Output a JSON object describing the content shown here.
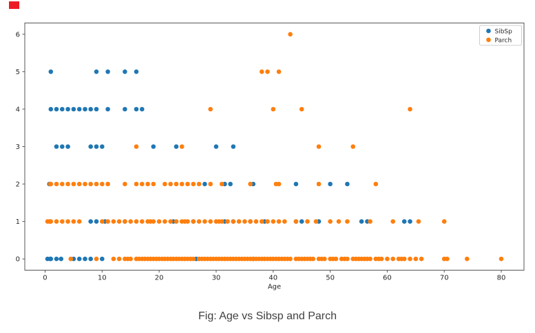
{
  "marker": {
    "color": "#ed1c24"
  },
  "caption": "Fig: Age vs Sibsp and Parch",
  "chart_data": {
    "type": "scatter",
    "title": "",
    "xlabel": "Age",
    "ylabel": "",
    "x_ticks": [
      0,
      10,
      20,
      30,
      40,
      50,
      60,
      70,
      80
    ],
    "y_ticks": [
      0,
      1,
      2,
      3,
      4,
      5,
      6
    ],
    "xlim": [
      -3.56,
      83.98
    ],
    "ylim": [
      -0.3,
      6.3
    ],
    "grid": false,
    "legend_position": "upper right",
    "frame_color": "#555555",
    "series": [
      {
        "name": "SibSp",
        "color": "#1f77b4",
        "points": [
          [
            0.42,
            0
          ],
          [
            0.9,
            0
          ],
          [
            1,
            0
          ],
          [
            2,
            0
          ],
          [
            2.8,
            0
          ],
          [
            5,
            0
          ],
          [
            6,
            0
          ],
          [
            7,
            0
          ],
          [
            8,
            0
          ],
          [
            10,
            0
          ],
          [
            26.5,
            0
          ],
          [
            36.5,
            0
          ],
          [
            8,
            1
          ],
          [
            9,
            1
          ],
          [
            10.5,
            1
          ],
          [
            14,
            1
          ],
          [
            22.5,
            1
          ],
          [
            26,
            1
          ],
          [
            31.5,
            1
          ],
          [
            33,
            1
          ],
          [
            36,
            1
          ],
          [
            38.5,
            1
          ],
          [
            44,
            1
          ],
          [
            45,
            1
          ],
          [
            48,
            1
          ],
          [
            55.5,
            1
          ],
          [
            56.5,
            1
          ],
          [
            63,
            1
          ],
          [
            64,
            1
          ],
          [
            0.75,
            2
          ],
          [
            28,
            2
          ],
          [
            31.5,
            2
          ],
          [
            32.5,
            2
          ],
          [
            36.5,
            2
          ],
          [
            44,
            2
          ],
          [
            50,
            2
          ],
          [
            53,
            2
          ],
          [
            2,
            3
          ],
          [
            3,
            3
          ],
          [
            4,
            3
          ],
          [
            8,
            3
          ],
          [
            9,
            3
          ],
          [
            10,
            3
          ],
          [
            19,
            3
          ],
          [
            23,
            3
          ],
          [
            30,
            3
          ],
          [
            33,
            3
          ],
          [
            1,
            4
          ],
          [
            2,
            4
          ],
          [
            3,
            4
          ],
          [
            4,
            4
          ],
          [
            5,
            4
          ],
          [
            6,
            4
          ],
          [
            7,
            4
          ],
          [
            8,
            4
          ],
          [
            9,
            4
          ],
          [
            11,
            4
          ],
          [
            14,
            4
          ],
          [
            16,
            4
          ],
          [
            17,
            4
          ],
          [
            1,
            5
          ],
          [
            9,
            5
          ],
          [
            11,
            5
          ],
          [
            14,
            5
          ],
          [
            16,
            5
          ]
        ]
      },
      {
        "name": "Parch",
        "color": "#ff7f0e",
        "points": [
          [
            4.5,
            0
          ],
          [
            9,
            0
          ],
          [
            12,
            0
          ],
          [
            13,
            0
          ],
          [
            14,
            0
          ],
          [
            14.5,
            0
          ],
          [
            15,
            0
          ],
          [
            16,
            0
          ],
          [
            16.5,
            0
          ],
          [
            17,
            0
          ],
          [
            17.5,
            0
          ],
          [
            18,
            0
          ],
          [
            18.5,
            0
          ],
          [
            19,
            0
          ],
          [
            19.5,
            0
          ],
          [
            20,
            0
          ],
          [
            20.5,
            0
          ],
          [
            21,
            0
          ],
          [
            21.5,
            0
          ],
          [
            22,
            0
          ],
          [
            22.5,
            0
          ],
          [
            23,
            0
          ],
          [
            23.5,
            0
          ],
          [
            24,
            0
          ],
          [
            24.5,
            0
          ],
          [
            25,
            0
          ],
          [
            25.5,
            0
          ],
          [
            26,
            0
          ],
          [
            27,
            0
          ],
          [
            27.5,
            0
          ],
          [
            28,
            0
          ],
          [
            28.5,
            0
          ],
          [
            29,
            0
          ],
          [
            29.5,
            0
          ],
          [
            30,
            0
          ],
          [
            30.5,
            0
          ],
          [
            31,
            0
          ],
          [
            31.5,
            0
          ],
          [
            32,
            0
          ],
          [
            32.5,
            0
          ],
          [
            33,
            0
          ],
          [
            33.5,
            0
          ],
          [
            34,
            0
          ],
          [
            34.5,
            0
          ],
          [
            35,
            0
          ],
          [
            35.5,
            0
          ],
          [
            36,
            0
          ],
          [
            36.5,
            0
          ],
          [
            37,
            0
          ],
          [
            37.5,
            0
          ],
          [
            38,
            0
          ],
          [
            38.5,
            0
          ],
          [
            39,
            0
          ],
          [
            39.5,
            0
          ],
          [
            40,
            0
          ],
          [
            40.5,
            0
          ],
          [
            41,
            0
          ],
          [
            41.5,
            0
          ],
          [
            42,
            0
          ],
          [
            42.5,
            0
          ],
          [
            43,
            0
          ],
          [
            44,
            0
          ],
          [
            44.5,
            0
          ],
          [
            45,
            0
          ],
          [
            45.5,
            0
          ],
          [
            46,
            0
          ],
          [
            46.5,
            0
          ],
          [
            47,
            0
          ],
          [
            48,
            0
          ],
          [
            48.5,
            0
          ],
          [
            49,
            0
          ],
          [
            50,
            0
          ],
          [
            50.5,
            0
          ],
          [
            51,
            0
          ],
          [
            52,
            0
          ],
          [
            52.5,
            0
          ],
          [
            53,
            0
          ],
          [
            54,
            0
          ],
          [
            54.5,
            0
          ],
          [
            55,
            0
          ],
          [
            55.5,
            0
          ],
          [
            56,
            0
          ],
          [
            56.5,
            0
          ],
          [
            57,
            0
          ],
          [
            58,
            0
          ],
          [
            58.5,
            0
          ],
          [
            59,
            0
          ],
          [
            60,
            0
          ],
          [
            61,
            0
          ],
          [
            62,
            0
          ],
          [
            62.5,
            0
          ],
          [
            63,
            0
          ],
          [
            64,
            0
          ],
          [
            65,
            0
          ],
          [
            66,
            0
          ],
          [
            70,
            0
          ],
          [
            70.5,
            0
          ],
          [
            74,
            0
          ],
          [
            80,
            0
          ],
          [
            0.42,
            1
          ],
          [
            0.75,
            1
          ],
          [
            0.9,
            1
          ],
          [
            1,
            1
          ],
          [
            2,
            1
          ],
          [
            3,
            1
          ],
          [
            4,
            1
          ],
          [
            5,
            1
          ],
          [
            6,
            1
          ],
          [
            10,
            1
          ],
          [
            11,
            1
          ],
          [
            12,
            1
          ],
          [
            13,
            1
          ],
          [
            14,
            1
          ],
          [
            15,
            1
          ],
          [
            16,
            1
          ],
          [
            17,
            1
          ],
          [
            18,
            1
          ],
          [
            18.5,
            1
          ],
          [
            19,
            1
          ],
          [
            20,
            1
          ],
          [
            21,
            1
          ],
          [
            22,
            1
          ],
          [
            23,
            1
          ],
          [
            24,
            1
          ],
          [
            24.5,
            1
          ],
          [
            25,
            1
          ],
          [
            26,
            1
          ],
          [
            27,
            1
          ],
          [
            28,
            1
          ],
          [
            29,
            1
          ],
          [
            30,
            1
          ],
          [
            30.5,
            1
          ],
          [
            31,
            1
          ],
          [
            32,
            1
          ],
          [
            33,
            1
          ],
          [
            34,
            1
          ],
          [
            35,
            1
          ],
          [
            36,
            1
          ],
          [
            37,
            1
          ],
          [
            38,
            1
          ],
          [
            39,
            1
          ],
          [
            40,
            1
          ],
          [
            41,
            1
          ],
          [
            42,
            1
          ],
          [
            44,
            1
          ],
          [
            46,
            1
          ],
          [
            47.5,
            1
          ],
          [
            50,
            1
          ],
          [
            51.5,
            1
          ],
          [
            53,
            1
          ],
          [
            57,
            1
          ],
          [
            61,
            1
          ],
          [
            65.5,
            1
          ],
          [
            70,
            1
          ],
          [
            0.9,
            2
          ],
          [
            1,
            2
          ],
          [
            2,
            2
          ],
          [
            3,
            2
          ],
          [
            4,
            2
          ],
          [
            5,
            2
          ],
          [
            6,
            2
          ],
          [
            7,
            2
          ],
          [
            8,
            2
          ],
          [
            9,
            2
          ],
          [
            10,
            2
          ],
          [
            11,
            2
          ],
          [
            14,
            2
          ],
          [
            16,
            2
          ],
          [
            17,
            2
          ],
          [
            18,
            2
          ],
          [
            19,
            2
          ],
          [
            21,
            2
          ],
          [
            22,
            2
          ],
          [
            23,
            2
          ],
          [
            24,
            2
          ],
          [
            25,
            2
          ],
          [
            26,
            2
          ],
          [
            27,
            2
          ],
          [
            29,
            2
          ],
          [
            31,
            2
          ],
          [
            36,
            2
          ],
          [
            40.5,
            2
          ],
          [
            41,
            2
          ],
          [
            48,
            2
          ],
          [
            58,
            2
          ],
          [
            16,
            3
          ],
          [
            24,
            3
          ],
          [
            48,
            3
          ],
          [
            54,
            3
          ],
          [
            29,
            4
          ],
          [
            40,
            4
          ],
          [
            45,
            4
          ],
          [
            64,
            4
          ],
          [
            38,
            5
          ],
          [
            39,
            5
          ],
          [
            41,
            5
          ],
          [
            43,
            6
          ]
        ]
      }
    ]
  }
}
